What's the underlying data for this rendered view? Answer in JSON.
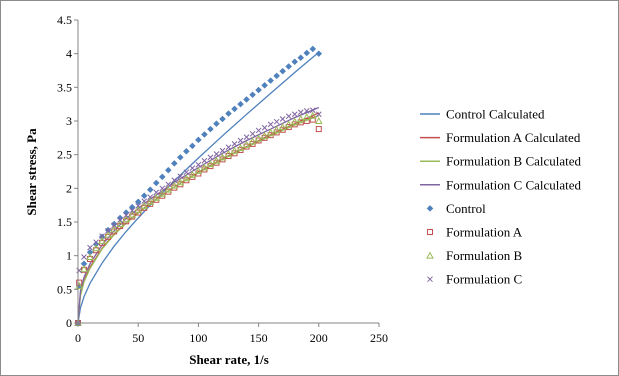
{
  "chart_data": {
    "type": "scatter",
    "title": "",
    "xlabel": "Shear rate, 1/s",
    "ylabel": "Shear stress, Pa",
    "xlim": [
      0,
      250
    ],
    "ylim": [
      0,
      4.5
    ],
    "xticks": [
      0,
      50,
      100,
      150,
      200,
      250
    ],
    "yticks": [
      0,
      0.5,
      1,
      1.5,
      2,
      2.5,
      3,
      3.5,
      4,
      4.5
    ],
    "xtick_labels": [
      "0",
      "50",
      "100",
      "150",
      "200",
      "250"
    ],
    "ytick_labels": [
      "0",
      "0.5",
      "1",
      "1.5",
      "2",
      "2.5",
      "3",
      "3.5",
      "4",
      "4.5"
    ],
    "grid": false,
    "legend_position": "right",
    "calculated_series": [
      {
        "name": "Control Calculated",
        "color": "#4f81bd",
        "x": [
          0,
          2,
          5,
          10,
          20,
          30,
          40,
          50,
          60,
          80,
          100,
          120,
          140,
          160,
          180,
          200
        ],
        "y": [
          0,
          0.22,
          0.39,
          0.59,
          0.89,
          1.14,
          1.36,
          1.56,
          1.75,
          2.11,
          2.45,
          2.78,
          3.1,
          3.41,
          3.72,
          4.02
        ]
      },
      {
        "name": "Formulation A Calculated",
        "color": "#c0504d",
        "x": [
          0,
          2,
          5,
          10,
          20,
          30,
          40,
          50,
          60,
          80,
          100,
          120,
          140,
          160,
          180,
          200
        ],
        "y": [
          0,
          0.42,
          0.63,
          0.83,
          1.11,
          1.32,
          1.49,
          1.64,
          1.78,
          2.02,
          2.24,
          2.44,
          2.62,
          2.8,
          2.96,
          3.12
        ]
      },
      {
        "name": "Formulation B Calculated",
        "color": "#9bbb59",
        "x": [
          0,
          2,
          5,
          10,
          20,
          30,
          40,
          50,
          60,
          80,
          100,
          120,
          140,
          160,
          180,
          200
        ],
        "y": [
          0,
          0.4,
          0.61,
          0.81,
          1.1,
          1.31,
          1.48,
          1.63,
          1.77,
          2.02,
          2.23,
          2.43,
          2.61,
          2.78,
          2.94,
          3.08
        ]
      },
      {
        "name": "Formulation C Calculated",
        "color": "#8064a2",
        "x": [
          0,
          2,
          5,
          10,
          20,
          30,
          40,
          50,
          60,
          80,
          100,
          120,
          140,
          160,
          180,
          200
        ],
        "y": [
          0,
          0.47,
          0.68,
          0.88,
          1.16,
          1.37,
          1.55,
          1.7,
          1.84,
          2.09,
          2.31,
          2.52,
          2.71,
          2.88,
          3.05,
          3.2
        ]
      }
    ],
    "measured_series": [
      {
        "name": "Control",
        "color": "#4f81bd",
        "marker": "diamond",
        "x": [
          0,
          1,
          5,
          10,
          15,
          20,
          25,
          30,
          35,
          40,
          45,
          50,
          55,
          60,
          65,
          70,
          75,
          80,
          85,
          90,
          95,
          100,
          105,
          110,
          115,
          120,
          125,
          130,
          135,
          140,
          145,
          150,
          155,
          160,
          165,
          170,
          175,
          180,
          185,
          190,
          195,
          200
        ],
        "y": [
          0,
          0.55,
          0.88,
          1.05,
          1.17,
          1.28,
          1.38,
          1.47,
          1.56,
          1.64,
          1.72,
          1.8,
          1.89,
          1.98,
          2.08,
          2.17,
          2.27,
          2.37,
          2.46,
          2.55,
          2.63,
          2.72,
          2.8,
          2.88,
          2.96,
          3.03,
          3.11,
          3.18,
          3.25,
          3.32,
          3.39,
          3.46,
          3.53,
          3.6,
          3.67,
          3.74,
          3.81,
          3.88,
          3.94,
          4.01,
          4.07,
          4.0
        ]
      },
      {
        "name": "Formulation A",
        "color": "#c0504d",
        "marker": "square",
        "x": [
          0,
          1,
          5,
          10,
          15,
          20,
          25,
          30,
          35,
          40,
          45,
          50,
          55,
          60,
          65,
          70,
          75,
          80,
          85,
          90,
          95,
          100,
          105,
          110,
          115,
          120,
          125,
          130,
          135,
          140,
          145,
          150,
          155,
          160,
          165,
          170,
          175,
          180,
          185,
          190,
          195,
          200
        ],
        "y": [
          0,
          0.6,
          0.79,
          0.95,
          1.08,
          1.19,
          1.28,
          1.36,
          1.44,
          1.51,
          1.58,
          1.64,
          1.71,
          1.77,
          1.83,
          1.89,
          1.95,
          2.01,
          2.06,
          2.12,
          2.17,
          2.22,
          2.28,
          2.33,
          2.38,
          2.43,
          2.48,
          2.52,
          2.57,
          2.62,
          2.66,
          2.71,
          2.75,
          2.79,
          2.83,
          2.87,
          2.91,
          2.95,
          2.98,
          3.0,
          3.02,
          2.88
        ]
      },
      {
        "name": "Formulation B",
        "color": "#9bbb59",
        "marker": "triangle",
        "x": [
          0,
          1,
          5,
          10,
          15,
          20,
          25,
          30,
          35,
          40,
          45,
          50,
          55,
          60,
          65,
          70,
          75,
          80,
          85,
          90,
          95,
          100,
          105,
          110,
          115,
          120,
          125,
          130,
          135,
          140,
          145,
          150,
          155,
          160,
          165,
          170,
          175,
          180,
          185,
          190,
          195,
          200
        ],
        "y": [
          0,
          0.55,
          0.8,
          0.98,
          1.11,
          1.22,
          1.31,
          1.39,
          1.47,
          1.54,
          1.61,
          1.68,
          1.74,
          1.8,
          1.86,
          1.92,
          1.98,
          2.04,
          2.09,
          2.15,
          2.2,
          2.26,
          2.31,
          2.36,
          2.41,
          2.46,
          2.51,
          2.56,
          2.6,
          2.65,
          2.7,
          2.74,
          2.78,
          2.83,
          2.87,
          2.91,
          2.95,
          2.99,
          3.03,
          3.06,
          3.08,
          3.0
        ]
      },
      {
        "name": "Formulation C",
        "color": "#8064a2",
        "marker": "x",
        "x": [
          0,
          1,
          5,
          10,
          15,
          20,
          25,
          30,
          35,
          40,
          45,
          50,
          55,
          60,
          65,
          70,
          75,
          80,
          85,
          90,
          95,
          100,
          105,
          110,
          115,
          120,
          125,
          130,
          135,
          140,
          145,
          150,
          155,
          160,
          165,
          170,
          175,
          180,
          185,
          190,
          195,
          200
        ],
        "y": [
          0,
          0.78,
          0.98,
          1.12,
          1.2,
          1.29,
          1.37,
          1.45,
          1.53,
          1.6,
          1.67,
          1.74,
          1.81,
          1.87,
          1.94,
          2.0,
          2.06,
          2.12,
          2.18,
          2.24,
          2.3,
          2.35,
          2.41,
          2.46,
          2.51,
          2.56,
          2.61,
          2.66,
          2.71,
          2.76,
          2.81,
          2.86,
          2.9,
          2.95,
          2.99,
          3.03,
          3.07,
          3.1,
          3.13,
          3.15,
          3.16,
          3.1
        ]
      }
    ]
  }
}
